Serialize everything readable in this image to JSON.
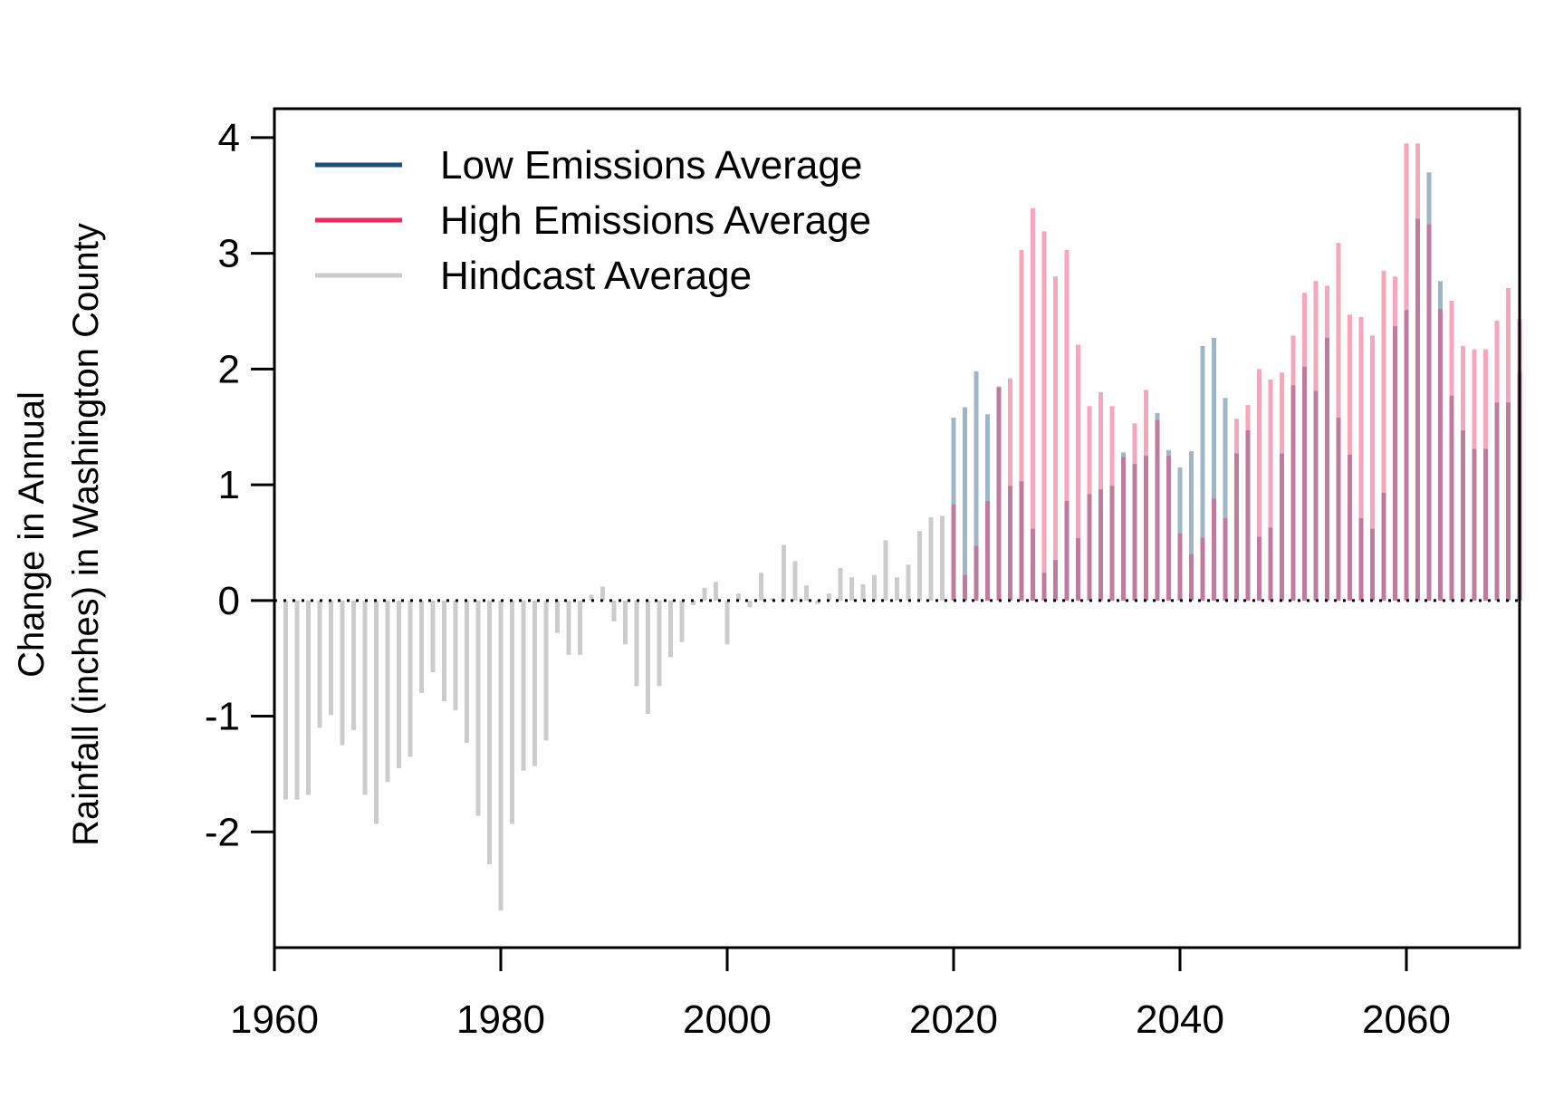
{
  "chart_data": {
    "type": "bar",
    "title": "",
    "xlabel": "",
    "ylabel_lines": [
      "Change in Annual",
      "Rainfall (inches) in Washington County"
    ],
    "xlim": [
      1960,
      2070
    ],
    "ylim": [
      -3,
      4.25
    ],
    "x_ticks": [
      1960,
      1980,
      2000,
      2020,
      2040,
      2060
    ],
    "y_ticks": [
      -2,
      -1,
      0,
      1,
      2,
      3,
      4
    ],
    "y_tick_labels": [
      "-2",
      "-1",
      "0",
      "1",
      "2",
      "3",
      "4"
    ],
    "reference_line": {
      "y": 0,
      "style": "dotted"
    },
    "grid": false,
    "legend": {
      "placement": "top-left",
      "entries": [
        {
          "label": "Low Emissions Average",
          "color": "#1b4f7c"
        },
        {
          "label": "High Emissions Average",
          "color": "#ef2b5f"
        },
        {
          "label": "Hindcast Average",
          "color": "#cccccc"
        }
      ]
    },
    "series": [
      {
        "name": "Hindcast Average",
        "color": "#cccccc",
        "years": [
          1961,
          1962,
          1963,
          1964,
          1965,
          1966,
          1967,
          1968,
          1969,
          1970,
          1971,
          1972,
          1973,
          1974,
          1975,
          1976,
          1977,
          1978,
          1979,
          1980,
          1981,
          1982,
          1983,
          1984,
          1985,
          1986,
          1987,
          1988,
          1989,
          1990,
          1991,
          1992,
          1993,
          1994,
          1995,
          1996,
          1997,
          1998,
          1999,
          2000,
          2001,
          2002,
          2003,
          2004,
          2005,
          2006,
          2007,
          2008,
          2009,
          2010,
          2011,
          2012,
          2013,
          2014,
          2015,
          2016,
          2017,
          2018,
          2019
        ],
        "values": [
          -1.72,
          -1.72,
          -1.68,
          -1.1,
          -0.99,
          -1.25,
          -1.12,
          -1.68,
          -1.93,
          -1.57,
          -1.45,
          -1.35,
          -0.8,
          -0.62,
          -0.87,
          -0.95,
          -1.23,
          -1.86,
          -2.28,
          -2.68,
          -1.93,
          -1.47,
          -1.43,
          -1.21,
          -0.28,
          -0.47,
          -0.47,
          0.05,
          0.12,
          -0.18,
          -0.38,
          -0.74,
          -0.98,
          -0.74,
          -0.49,
          -0.36,
          -0.04,
          0.11,
          0.16,
          -0.38,
          0.06,
          -0.06,
          0.24,
          0.02,
          0.48,
          0.34,
          0.13,
          -0.03,
          0.06,
          0.28,
          0.2,
          0.14,
          0.22,
          0.52,
          0.2,
          0.31,
          0.6,
          0.72,
          0.73
        ]
      },
      {
        "name": "Low Emissions Average",
        "color": "#1b4f7c",
        "years": [
          2020,
          2021,
          2022,
          2023,
          2024,
          2025,
          2026,
          2027,
          2028,
          2029,
          2030,
          2031,
          2032,
          2033,
          2034,
          2035,
          2036,
          2037,
          2038,
          2039,
          2040,
          2041,
          2042,
          2043,
          2044,
          2045,
          2046,
          2047,
          2048,
          2049,
          2050,
          2051,
          2052,
          2053,
          2054,
          2055,
          2056,
          2057,
          2058,
          2059,
          2060,
          2061,
          2062,
          2063,
          2064,
          2065,
          2066,
          2067,
          2068,
          2069,
          2070
        ],
        "values": [
          1.58,
          1.67,
          1.98,
          1.61,
          1.85,
          0.99,
          1.03,
          0.62,
          0.24,
          0.35,
          0.86,
          0.54,
          0.92,
          0.96,
          0.99,
          1.28,
          1.18,
          1.25,
          1.62,
          1.3,
          1.15,
          1.29,
          2.2,
          2.27,
          1.75,
          1.27,
          1.47,
          0.55,
          0.63,
          1.27,
          1.86,
          2.02,
          1.81,
          2.27,
          1.58,
          1.26,
          0.71,
          0.62,
          0.93,
          2.37,
          2.51,
          3.3,
          3.7,
          2.76,
          1.77,
          1.47,
          1.31,
          1.31,
          1.71,
          1.71,
          1.97
        ]
      },
      {
        "name": "High Emissions Average",
        "color": "#ef2b5f",
        "years": [
          2020,
          2021,
          2022,
          2023,
          2024,
          2025,
          2026,
          2027,
          2028,
          2029,
          2030,
          2031,
          2032,
          2033,
          2034,
          2035,
          2036,
          2037,
          2038,
          2039,
          2040,
          2041,
          2042,
          2043,
          2044,
          2045,
          2046,
          2047,
          2048,
          2049,
          2050,
          2051,
          2052,
          2053,
          2054,
          2055,
          2056,
          2057,
          2058,
          2059,
          2060,
          2061,
          2062,
          2063,
          2064,
          2065,
          2066,
          2067,
          2068,
          2069,
          2070
        ],
        "values": [
          0.83,
          0.22,
          0.47,
          0.86,
          1.84,
          1.92,
          3.03,
          3.39,
          3.19,
          2.8,
          3.03,
          2.21,
          1.68,
          1.8,
          1.68,
          1.24,
          1.53,
          1.82,
          1.56,
          1.25,
          0.58,
          0.4,
          0.54,
          0.88,
          0.71,
          1.57,
          1.69,
          2.0,
          1.91,
          1.97,
          2.29,
          2.66,
          2.76,
          2.72,
          3.09,
          2.47,
          2.45,
          2.29,
          2.85,
          2.8,
          3.95,
          3.95,
          3.25,
          2.52,
          2.59,
          2.2,
          2.17,
          2.17,
          2.42,
          2.7,
          2.43
        ]
      }
    ]
  }
}
